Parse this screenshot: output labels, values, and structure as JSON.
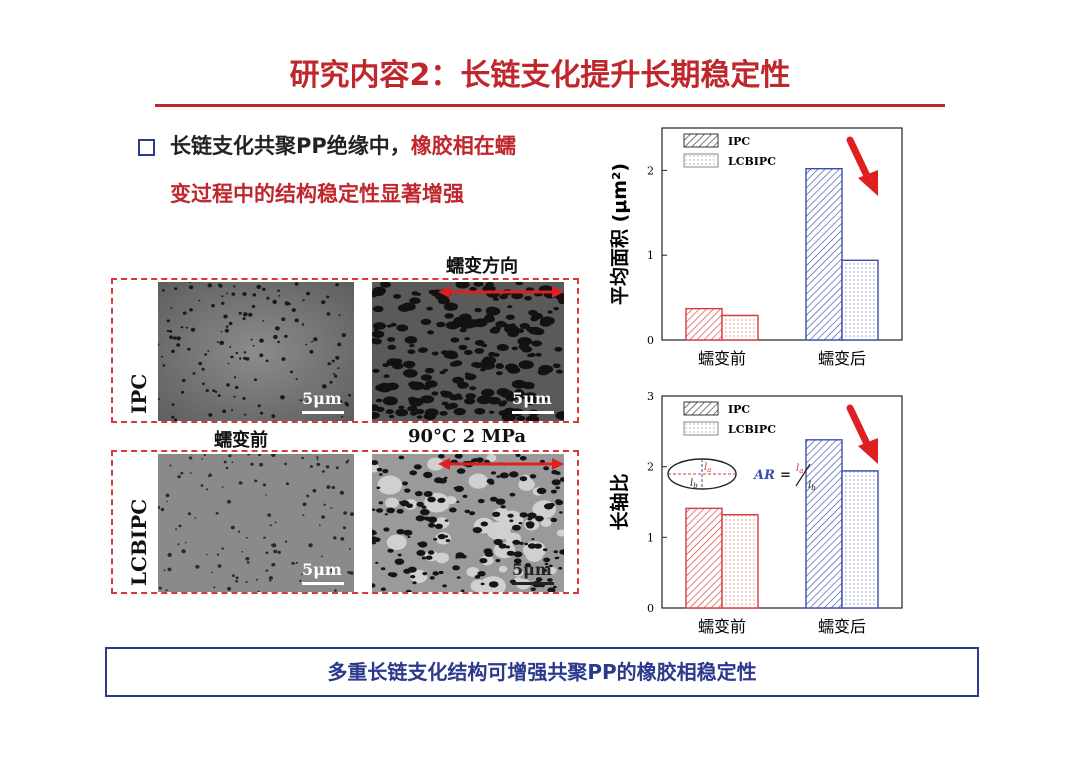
{
  "title": "研究内容2：长链支化提升长期稳定性",
  "bullet": {
    "line1_black": "长链支化共聚PP绝缘中，",
    "line1_red": "橡胶相在蠕",
    "line2_red": "变过程中的结构稳定性显著增强"
  },
  "sem_panel": {
    "direction_label": "蠕变方向",
    "rows": [
      {
        "label": "IPC",
        "left_scale": "5μm",
        "right_scale": "5μm"
      },
      {
        "label": "LCBIPC",
        "left_scale": "5μm",
        "right_scale": "5μm"
      }
    ],
    "caption_before": "蠕变前",
    "caption_condition": "90°C  2 MPa"
  },
  "conclusion": "多重长链支化结构可增强共聚PP的橡胶相稳定性",
  "colors": {
    "title_red": "#c0272d",
    "ipc_red": "#d63b3b",
    "lcbipc_blue": "#3b4fa8",
    "accent_blue": "#2b3a8c"
  },
  "chart_data": [
    {
      "type": "bar",
      "ylabel": "平均面积 (μm²)",
      "categories": [
        "蠕变前",
        "蠕变后"
      ],
      "series": [
        {
          "name": "IPC",
          "values": [
            0.37,
            2.02
          ]
        },
        {
          "name": "LCBIPC",
          "values": [
            0.29,
            0.94
          ]
        }
      ],
      "ylim": [
        0,
        2.5
      ],
      "yticks": [
        "0",
        "1",
        "2"
      ],
      "ytick_values": [
        0,
        1,
        2
      ],
      "legend": "top-left",
      "annotation": "red arrow pointing down at 蠕变后"
    },
    {
      "type": "bar",
      "ylabel": "长轴比",
      "categories": [
        "蠕变前",
        "蠕变后"
      ],
      "series": [
        {
          "name": "IPC",
          "values": [
            1.41,
            2.38
          ]
        },
        {
          "name": "LCBIPC",
          "values": [
            1.32,
            1.94
          ]
        }
      ],
      "ylim": [
        0,
        3
      ],
      "yticks": [
        "0",
        "1",
        "2",
        "3"
      ],
      "ytick_values": [
        0,
        1,
        2,
        3
      ],
      "legend": "top-left",
      "inset": {
        "formula_prefix": "AR",
        "equals": "=",
        "la": "l",
        "la_sub": "a",
        "lb": "l",
        "lb_sub": "b"
      },
      "annotation": "red arrow pointing down at 蠕变后"
    }
  ]
}
